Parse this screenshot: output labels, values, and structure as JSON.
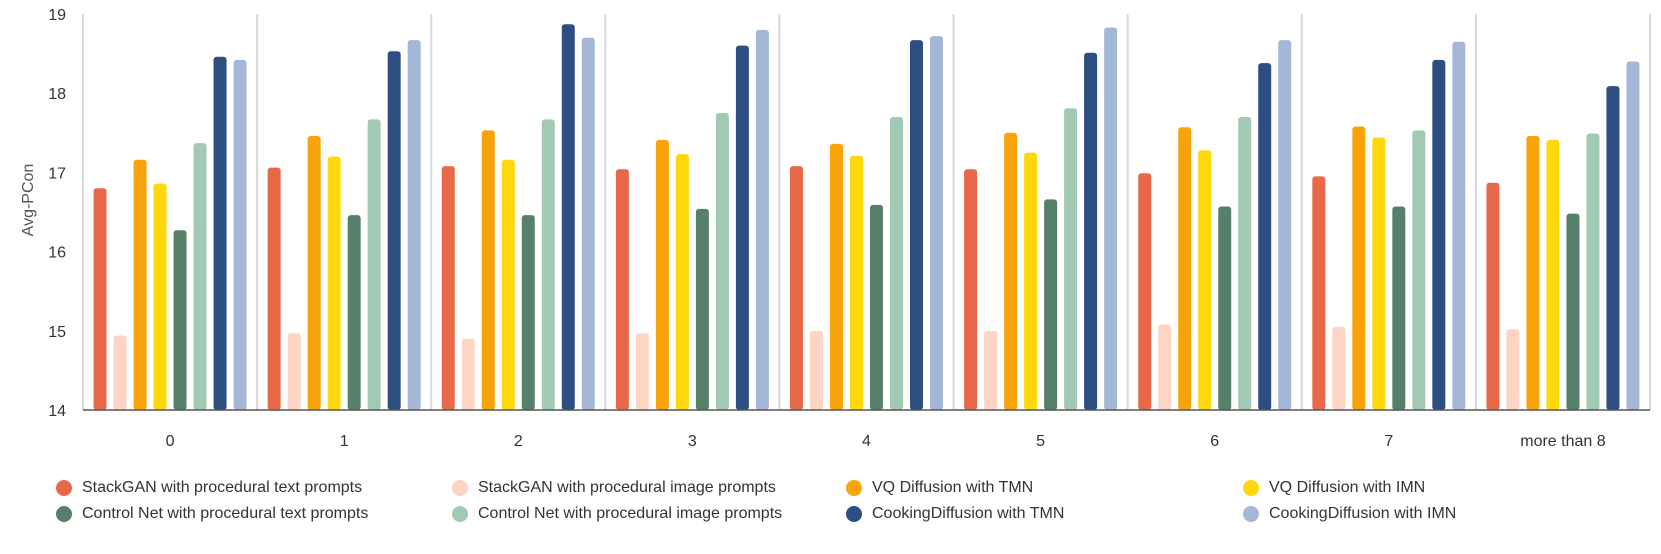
{
  "chart_data": {
    "type": "bar",
    "title": "",
    "xlabel": "",
    "ylabel": "Avg-PCon",
    "ylim": [
      14,
      19
    ],
    "yticks": [
      "14",
      "15",
      "16",
      "17",
      "18",
      "19"
    ],
    "grid": "vertical separators between categories",
    "legend_position": "bottom",
    "categories": [
      "0",
      "1",
      "2",
      "3",
      "4",
      "5",
      "6",
      "7",
      "more than 8"
    ],
    "series": [
      {
        "name": "StackGAN with procedural text prompts",
        "color": "#E8694A",
        "values": [
          16.8,
          17.06,
          17.08,
          17.04,
          17.08,
          17.04,
          16.99,
          16.95,
          16.87
        ]
      },
      {
        "name": "StackGAN with procedural image prompts",
        "color": "#FDD5C4",
        "values": [
          14.94,
          14.97,
          14.9,
          14.97,
          15.0,
          15.0,
          15.08,
          15.05,
          15.02
        ]
      },
      {
        "name": "VQ Diffusion with TMN",
        "color": "#F9A30B",
        "values": [
          17.16,
          17.46,
          17.53,
          17.41,
          17.36,
          17.5,
          17.57,
          17.58,
          17.46
        ]
      },
      {
        "name": "VQ Diffusion with IMN",
        "color": "#FED80C",
        "values": [
          16.86,
          17.2,
          17.16,
          17.23,
          17.21,
          17.25,
          17.28,
          17.44,
          17.41
        ]
      },
      {
        "name": "Control Net with procedural text prompts",
        "color": "#57806A",
        "values": [
          16.27,
          16.46,
          16.46,
          16.54,
          16.59,
          16.66,
          16.57,
          16.57,
          16.48
        ]
      },
      {
        "name": "Control Net with procedural image prompts",
        "color": "#A2C9B3",
        "values": [
          17.37,
          17.67,
          17.67,
          17.75,
          17.7,
          17.81,
          17.7,
          17.53,
          17.49
        ]
      },
      {
        "name": "CookingDiffusion with TMN",
        "color": "#2D4E80",
        "values": [
          18.46,
          18.53,
          18.87,
          18.6,
          18.67,
          18.51,
          18.38,
          18.42,
          18.09
        ]
      },
      {
        "name": "CookingDiffusion with IMN",
        "color": "#A4B7D7",
        "values": [
          18.42,
          18.67,
          18.7,
          18.8,
          18.72,
          18.83,
          18.67,
          18.65,
          18.4
        ]
      }
    ]
  }
}
